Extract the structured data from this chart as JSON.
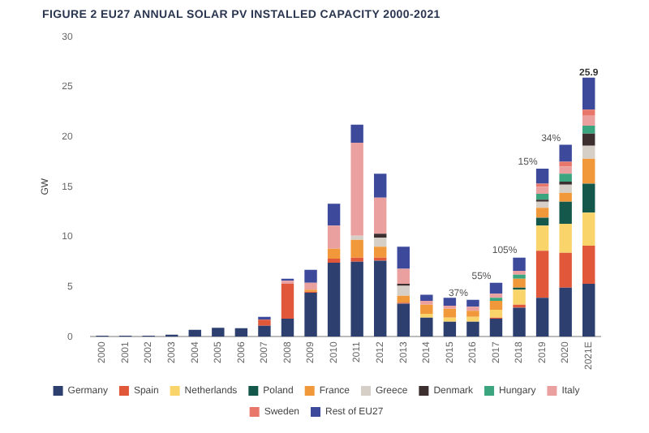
{
  "chart_data": {
    "type": "bar",
    "stacked": true,
    "title": "FIGURE 2 EU27 ANNUAL SOLAR PV INSTALLED CAPACITY 2000-2021",
    "ylabel": "GW",
    "categories": [
      "2000",
      "2001",
      "2002",
      "2003",
      "2004",
      "2005",
      "2006",
      "2007",
      "2008",
      "2009",
      "2010",
      "2011",
      "2012",
      "2013",
      "2014",
      "2015",
      "2016",
      "2017",
      "2018",
      "2019",
      "2020",
      "2021E"
    ],
    "series": [
      {
        "name": "Germany",
        "color": "#2d3f6e",
        "values": [
          0.1,
          0.1,
          0.1,
          0.2,
          0.7,
          0.9,
          0.85,
          1.1,
          1.8,
          4.4,
          7.4,
          7.5,
          7.6,
          3.3,
          1.9,
          1.5,
          1.5,
          1.8,
          2.9,
          3.9,
          4.9,
          5.3
        ]
      },
      {
        "name": "Spain",
        "color": "#e0573a",
        "values": [
          0,
          0,
          0,
          0,
          0,
          0,
          0,
          0.6,
          3.5,
          0.1,
          0.4,
          0.4,
          0.3,
          0.1,
          0,
          0,
          0,
          0.1,
          0.3,
          4.7,
          3.5,
          3.8
        ]
      },
      {
        "name": "Netherlands",
        "color": "#f9d46b",
        "values": [
          0,
          0,
          0,
          0,
          0,
          0,
          0,
          0,
          0,
          0,
          0,
          0,
          0,
          0,
          0.4,
          0.4,
          0.5,
          0.8,
          1.5,
          2.5,
          2.9,
          3.3
        ]
      },
      {
        "name": "Poland",
        "color": "#14584c",
        "values": [
          0,
          0,
          0,
          0,
          0,
          0,
          0,
          0,
          0,
          0,
          0,
          0,
          0,
          0,
          0,
          0,
          0,
          0,
          0.2,
          0.8,
          2.2,
          2.9
        ]
      },
      {
        "name": "France",
        "color": "#f0983a",
        "values": [
          0,
          0,
          0,
          0,
          0,
          0,
          0,
          0,
          0,
          0.2,
          1.0,
          1.8,
          1.1,
          0.7,
          0.9,
          0.9,
          0.6,
          0.9,
          0.9,
          1.0,
          0.9,
          2.5
        ]
      },
      {
        "name": "Greece",
        "color": "#d6cfc8",
        "values": [
          0,
          0,
          0,
          0,
          0,
          0,
          0,
          0,
          0,
          0,
          0,
          0.4,
          0.9,
          1.0,
          0,
          0,
          0,
          0,
          0,
          0.6,
          0.8,
          1.3
        ]
      },
      {
        "name": "Denmark",
        "color": "#3d2f30",
        "values": [
          0,
          0,
          0,
          0,
          0,
          0,
          0,
          0,
          0,
          0,
          0,
          0,
          0.4,
          0.2,
          0,
          0,
          0,
          0,
          0,
          0.2,
          0.3,
          1.2
        ]
      },
      {
        "name": "Hungary",
        "color": "#3aa57e",
        "values": [
          0,
          0,
          0,
          0,
          0,
          0,
          0,
          0,
          0,
          0,
          0,
          0,
          0,
          0,
          0,
          0,
          0,
          0.3,
          0.4,
          0.6,
          0.8,
          0.8
        ]
      },
      {
        "name": "Italy",
        "color": "#eba0a0",
        "values": [
          0,
          0,
          0,
          0,
          0,
          0,
          0,
          0,
          0.3,
          0.7,
          2.3,
          9.3,
          3.6,
          1.5,
          0.4,
          0.3,
          0.4,
          0.4,
          0.4,
          0.7,
          0.7,
          1.0
        ]
      },
      {
        "name": "Sweden",
        "color": "#e8766a",
        "values": [
          0,
          0,
          0,
          0,
          0,
          0,
          0,
          0,
          0,
          0,
          0,
          0,
          0,
          0,
          0,
          0,
          0,
          0,
          0,
          0.3,
          0.5,
          0.6
        ]
      },
      {
        "name": "Rest of EU27",
        "color": "#3d4a9c",
        "values": [
          0,
          0,
          0,
          0,
          0,
          0,
          0,
          0.3,
          0.2,
          1.3,
          2.2,
          1.8,
          2.4,
          2.2,
          0.6,
          0.8,
          0.7,
          1.1,
          1.3,
          1.5,
          1.7,
          3.2
        ]
      }
    ],
    "totals": [
      null,
      null,
      null,
      null,
      null,
      null,
      null,
      null,
      null,
      null,
      null,
      null,
      null,
      null,
      null,
      null,
      null,
      null,
      null,
      null,
      null,
      "25.9"
    ],
    "annotations": [
      {
        "text": "37%",
        "x": "2016",
        "y": 3.7
      },
      {
        "text": "55%",
        "x": "2017",
        "y": 5.4
      },
      {
        "text": "105%",
        "x": "2018",
        "y": 8.0
      },
      {
        "text": "15%",
        "x": "2019",
        "y": 16.8
      },
      {
        "text": "34%",
        "x": "2020",
        "y": 19.2
      }
    ],
    "ylim": [
      0,
      30
    ],
    "yticks": [
      0,
      5,
      10,
      15,
      20,
      25,
      30
    ],
    "grid": false,
    "legend": "bottom"
  }
}
